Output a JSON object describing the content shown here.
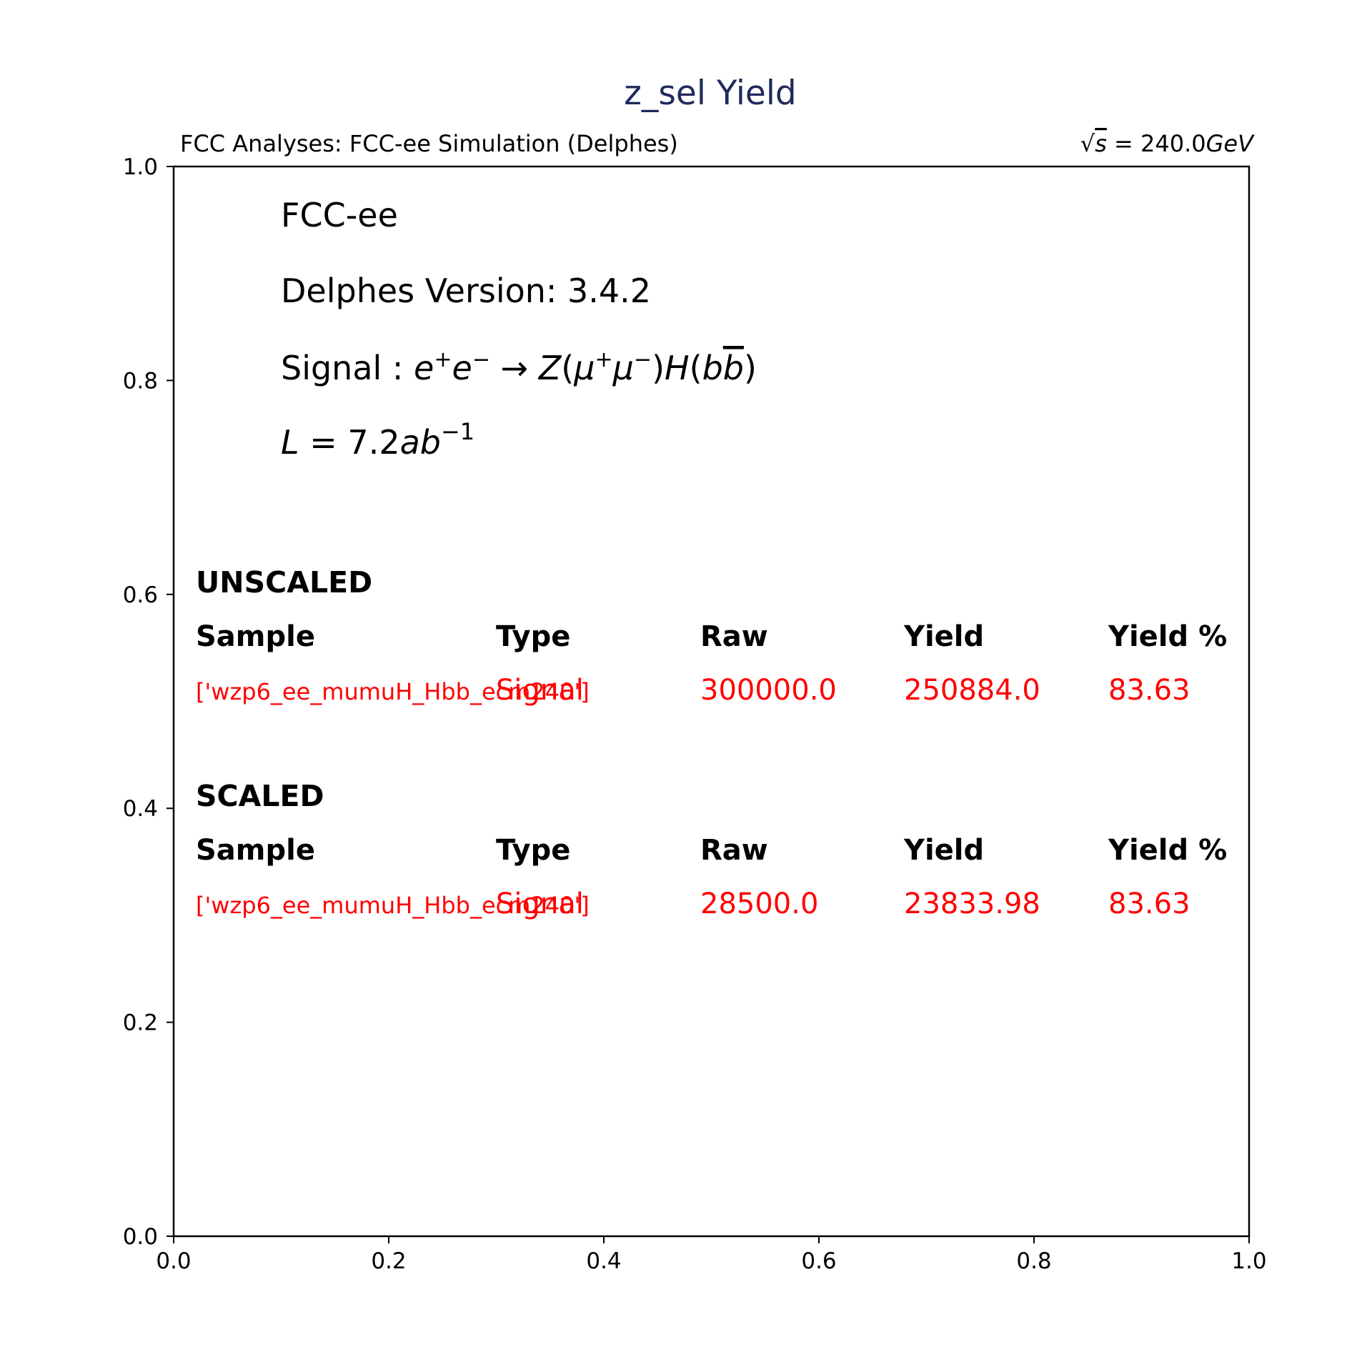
{
  "title": "z_sel Yield",
  "header_left": "FCC Analyses: FCC-ee Simulation (Delphes)",
  "header_right": {
    "sqrt_symbol": "√",
    "s": "s",
    "eq": " = 240.0",
    "unit": "GeV"
  },
  "info": {
    "experiment": "FCC-ee",
    "delphes_version": "Delphes Version: 3.4.2",
    "signal_prefix": "Signal : ",
    "lumi_L": "L",
    "lumi_value": " = 7.2",
    "lumi_unit": "ab",
    "lumi_exp": "−1"
  },
  "colors": {
    "title": "#1f2a5c",
    "rows": "#ff0000",
    "text": "#000000"
  },
  "chart_data": {
    "type": "table",
    "title": "z_sel Yield",
    "xlim": [
      0.0,
      1.0
    ],
    "ylim": [
      0.0,
      1.0
    ],
    "x_ticks": [
      "0.0",
      "0.2",
      "0.4",
      "0.6",
      "0.8",
      "1.0"
    ],
    "y_ticks": [
      "0.0",
      "0.2",
      "0.4",
      "0.6",
      "0.8",
      "1.0"
    ],
    "columns": [
      "Sample",
      "Type",
      "Raw",
      "Yield",
      "Yield %"
    ],
    "sections": [
      {
        "label": "UNSCALED",
        "rows": [
          {
            "sample": "['wzp6_ee_mumuH_Hbb_ecm240']",
            "type": "Signal",
            "raw": "300000.0",
            "yield": "250884.0",
            "yield_pct": "83.63"
          }
        ]
      },
      {
        "label": "SCALED",
        "rows": [
          {
            "sample": "['wzp6_ee_mumuH_Hbb_ecm240']",
            "type": "Signal",
            "raw": "28500.0",
            "yield": "23833.98",
            "yield_pct": "83.63"
          }
        ]
      }
    ]
  }
}
